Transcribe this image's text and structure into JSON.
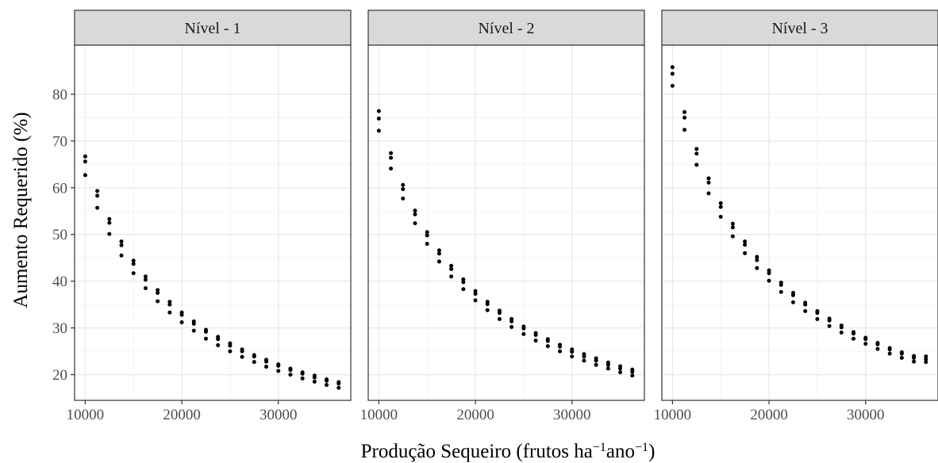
{
  "chart_data": {
    "type": "scatter",
    "facet_labels": [
      "Nível - 1",
      "Nível - 2",
      "Nível - 3"
    ],
    "xlabel": {
      "main": "Produção Sequeiro (frutos ha",
      "sup1": "−1",
      "mid": "ano",
      "sup2": "−1",
      "end": ")"
    },
    "ylabel": "Aumento Requerido (%)",
    "x_ticks": [
      10000,
      20000,
      30000
    ],
    "x_tick_labels": [
      "10000",
      "20000",
      "30000"
    ],
    "y_ticks": [
      20,
      30,
      40,
      50,
      60,
      70,
      80
    ],
    "y_tick_labels": [
      "20",
      "30",
      "40",
      "50",
      "60",
      "70",
      "80"
    ],
    "xlim": [
      8900,
      37500
    ],
    "ylim": [
      14.5,
      90.5
    ],
    "grid": true,
    "point_color": "#000000",
    "x": [
      10000,
      11250,
      12500,
      13750,
      15000,
      16250,
      17500,
      18750,
      20000,
      21250,
      22500,
      23750,
      25000,
      26250,
      27500,
      28750,
      30000,
      31250,
      32500,
      33750,
      35000,
      36250
    ],
    "facets": [
      {
        "name": "Nível - 1",
        "series": [
          {
            "values": [
              66.7,
              59.3,
              53.3,
              48.5,
              44.4,
              41.0,
              38.1,
              35.6,
              33.3,
              31.4,
              29.6,
              28.1,
              26.7,
              25.4,
              24.2,
              23.2,
              22.2,
              21.3,
              20.5,
              19.8,
              19.0,
              18.4
            ]
          },
          {
            "values": [
              65.6,
              58.3,
              52.5,
              47.7,
              43.7,
              40.3,
              37.5,
              35.0,
              32.8,
              30.9,
              29.2,
              27.6,
              26.2,
              25.0,
              23.9,
              22.8,
              21.9,
              21.0,
              20.2,
              19.4,
              18.7,
              18.1
            ]
          },
          {
            "values": [
              62.7,
              55.7,
              50.1,
              45.5,
              41.7,
              38.5,
              35.7,
              33.3,
              31.2,
              29.4,
              27.7,
              26.3,
              25.0,
              23.8,
              22.7,
              21.7,
              20.8,
              20.0,
              19.2,
              18.5,
              17.8,
              17.2
            ]
          }
        ]
      },
      {
        "name": "Nível - 2",
        "series": [
          {
            "values": [
              76.4,
              67.4,
              60.6,
              55.1,
              50.5,
              46.6,
              43.3,
              40.4,
              37.9,
              35.6,
              33.7,
              31.9,
              30.3,
              28.9,
              27.6,
              26.4,
              25.4,
              24.4,
              23.5,
              22.6,
              21.8,
              21.1
            ]
          },
          {
            "values": [
              74.8,
              66.4,
              59.7,
              54.3,
              49.8,
              45.9,
              42.6,
              39.8,
              37.3,
              35.1,
              33.2,
              31.4,
              29.9,
              28.5,
              27.2,
              26.0,
              24.9,
              23.9,
              23.0,
              22.1,
              21.3,
              20.6
            ]
          },
          {
            "values": [
              72.2,
              64.1,
              57.7,
              52.4,
              48.0,
              44.2,
              41.0,
              38.3,
              35.9,
              33.8,
              31.9,
              30.2,
              28.7,
              27.3,
              26.1,
              25.0,
              23.9,
              23.0,
              22.1,
              21.3,
              20.5,
              19.8
            ]
          }
        ]
      },
      {
        "name": "Nível - 3",
        "series": [
          {
            "values": [
              85.8,
              76.2,
              68.3,
              62.0,
              56.7,
              52.3,
              48.5,
              45.2,
              42.3,
              39.7,
              37.5,
              35.4,
              33.6,
              32.0,
              30.5,
              29.1,
              27.9,
              26.8,
              25.7,
              24.8,
              24.0,
              23.9
            ]
          },
          {
            "values": [
              84.4,
              75.0,
              67.3,
              61.1,
              55.9,
              51.5,
              47.8,
              44.5,
              41.7,
              39.2,
              37.0,
              35.0,
              33.2,
              31.6,
              30.1,
              28.8,
              27.6,
              26.5,
              25.4,
              24.5,
              23.6,
              23.3
            ]
          },
          {
            "values": [
              81.8,
              72.4,
              64.9,
              58.8,
              53.8,
              49.6,
              46.0,
              42.8,
              40.1,
              37.7,
              35.5,
              33.6,
              31.9,
              30.4,
              29.0,
              27.7,
              26.6,
              25.5,
              24.5,
              23.6,
              22.8,
              22.7
            ]
          }
        ]
      }
    ]
  }
}
